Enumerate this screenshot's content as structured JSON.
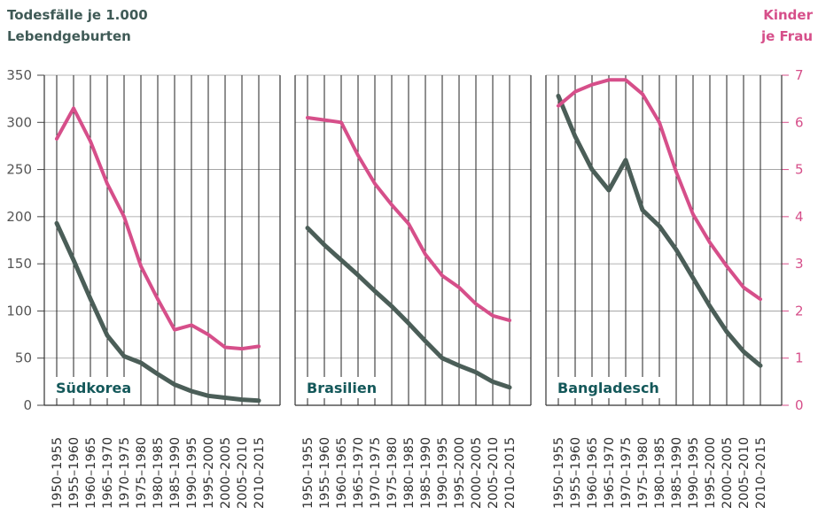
{
  "axes": {
    "left_title_line1": "Todesfälle je 1.000",
    "left_title_line2": "Lebendgeburten",
    "right_title_line1": "Kinder",
    "right_title_line2": "je Frau"
  },
  "chart_data": {
    "type": "line",
    "ylim_left": [
      0,
      350
    ],
    "yticks_left": [
      0,
      50,
      100,
      150,
      200,
      250,
      300,
      350
    ],
    "ylim_right": [
      0,
      7
    ],
    "yticks_right": [
      0,
      1,
      2,
      3,
      4,
      5,
      6,
      7
    ],
    "grid": true,
    "categories": [
      "1950–1955",
      "1955–1960",
      "1960–1965",
      "1965–1970",
      "1970–1975",
      "1975–1980",
      "1980–1985",
      "1985–1990",
      "1990–1995",
      "1995–2000",
      "2000–2005",
      "2005–2010",
      "2010–2015"
    ],
    "colors": {
      "mortality": "#4b5e58",
      "fertility": "#d64f8a"
    },
    "panels": [
      {
        "name": "Südkorea",
        "mortality": [
          193,
          154,
          113,
          74,
          52,
          45,
          33,
          22,
          15,
          10,
          8,
          6,
          5
        ],
        "fertility": [
          5.65,
          6.3,
          5.6,
          4.7,
          4.0,
          2.95,
          2.25,
          1.6,
          1.7,
          1.5,
          1.23,
          1.2,
          1.25
        ]
      },
      {
        "name": "Brasilien",
        "mortality": [
          188,
          170,
          154,
          138,
          121,
          105,
          87,
          68,
          50,
          42,
          35,
          25,
          19
        ],
        "fertility": [
          6.1,
          6.05,
          6.0,
          5.3,
          4.7,
          4.25,
          3.85,
          3.2,
          2.75,
          2.5,
          2.15,
          1.9,
          1.8
        ]
      },
      {
        "name": "Bangladesch",
        "mortality": [
          328,
          285,
          250,
          228,
          260,
          207,
          190,
          165,
          135,
          105,
          78,
          57,
          42
        ],
        "fertility": [
          6.35,
          6.65,
          6.8,
          6.9,
          6.9,
          6.6,
          6.0,
          4.95,
          4.05,
          3.45,
          2.95,
          2.5,
          2.25
        ]
      }
    ]
  }
}
